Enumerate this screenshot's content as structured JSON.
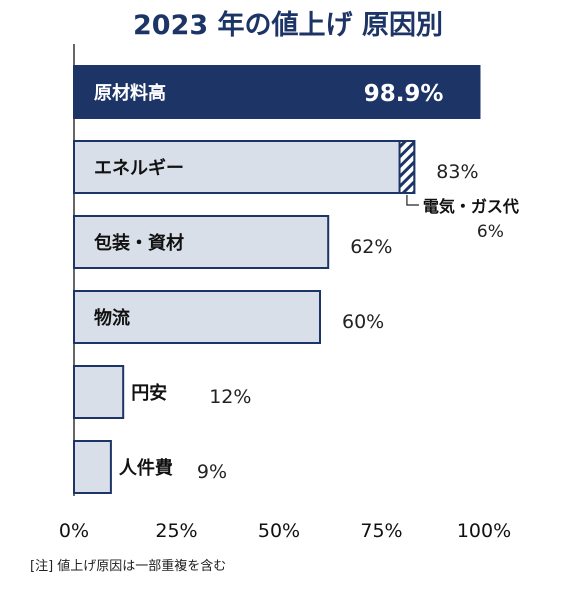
{
  "chart_data": {
    "type": "bar",
    "orientation": "horizontal",
    "title": "2023 年の値上げ  原因別",
    "categories": [
      "原材料高",
      "エネルギー",
      "包装・資材",
      "物流",
      "円安",
      "人件費"
    ],
    "values": [
      98.9,
      83,
      62,
      60,
      12,
      9
    ],
    "value_labels": [
      "98.9%",
      "83%",
      "62%",
      "60%",
      "12%",
      "9%"
    ],
    "xlim": [
      0,
      100
    ],
    "xticks": [
      0,
      25,
      50,
      75,
      100
    ],
    "xtick_labels": [
      "0%",
      "25%",
      "50%",
      "75%",
      "100%"
    ],
    "grid": false,
    "sub_segment": {
      "category": "エネルギー",
      "name": "電気・ガス代",
      "value": 6,
      "label": "6%"
    },
    "note": "[注]  値上げ原因は一部重複を含む",
    "colors": {
      "highlight_fill": "#1c3566",
      "bar_fill": "#d9dfe9",
      "bar_stroke": "#1c3566",
      "hatch": "#1c3566"
    }
  }
}
